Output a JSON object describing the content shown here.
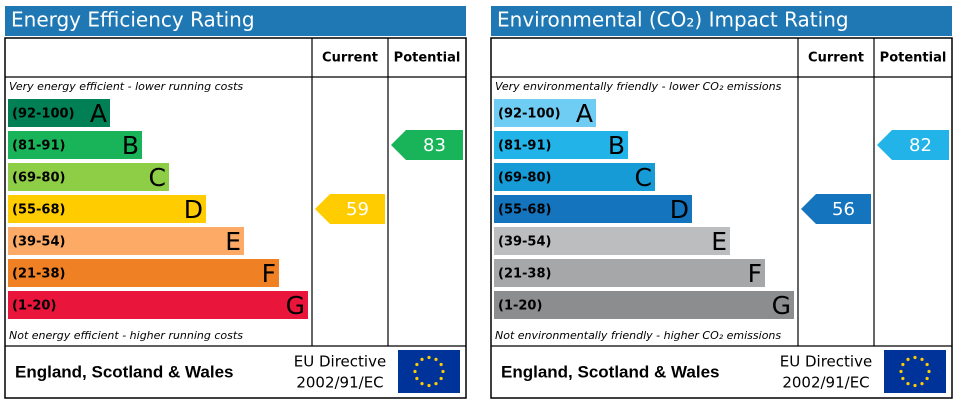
{
  "panels": [
    {
      "title": "Energy Efficiency Rating",
      "headers": [
        "Current",
        "Potential"
      ],
      "top_note": "Very energy efficient - lower running costs",
      "bottom_note": "Not energy efficient - higher running costs",
      "bands": [
        {
          "range": "(92-100)",
          "letter": "A",
          "color": "#008054"
        },
        {
          "range": "(81-91)",
          "letter": "B",
          "color": "#19b459"
        },
        {
          "range": "(69-80)",
          "letter": "C",
          "color": "#8dce46"
        },
        {
          "range": "(55-68)",
          "letter": "D",
          "color": "#ffcc00"
        },
        {
          "range": "(39-54)",
          "letter": "E",
          "color": "#fcaa65"
        },
        {
          "range": "(21-38)",
          "letter": "F",
          "color": "#ef8023"
        },
        {
          "range": "(1-20)",
          "letter": "G",
          "color": "#e9153b"
        }
      ],
      "current": 59,
      "potential": 83,
      "footer": {
        "region": "England, Scotland & Wales",
        "directive": "EU Directive",
        "directive_code": "2002/91/EC"
      }
    },
    {
      "title": "Environmental (CO₂) Impact Rating",
      "headers": [
        "Current",
        "Potential"
      ],
      "top_note": "Very environmentally friendly - lower CO₂ emissions",
      "bottom_note": "Not environmentally friendly - higher CO₂ emissions",
      "bands": [
        {
          "range": "(92-100)",
          "letter": "A",
          "color": "#6fcdf3"
        },
        {
          "range": "(81-91)",
          "letter": "B",
          "color": "#22b3e8"
        },
        {
          "range": "(69-80)",
          "letter": "C",
          "color": "#179bd6"
        },
        {
          "range": "(55-68)",
          "letter": "D",
          "color": "#1474bd"
        },
        {
          "range": "(39-54)",
          "letter": "E",
          "color": "#bbbdbf"
        },
        {
          "range": "(21-38)",
          "letter": "F",
          "color": "#a5a7a9"
        },
        {
          "range": "(1-20)",
          "letter": "G",
          "color": "#8b8d8f"
        }
      ],
      "current": 56,
      "potential": 82,
      "footer": {
        "region": "England, Scotland & Wales",
        "directive": "EU Directive",
        "directive_code": "2002/91/EC"
      }
    }
  ]
}
